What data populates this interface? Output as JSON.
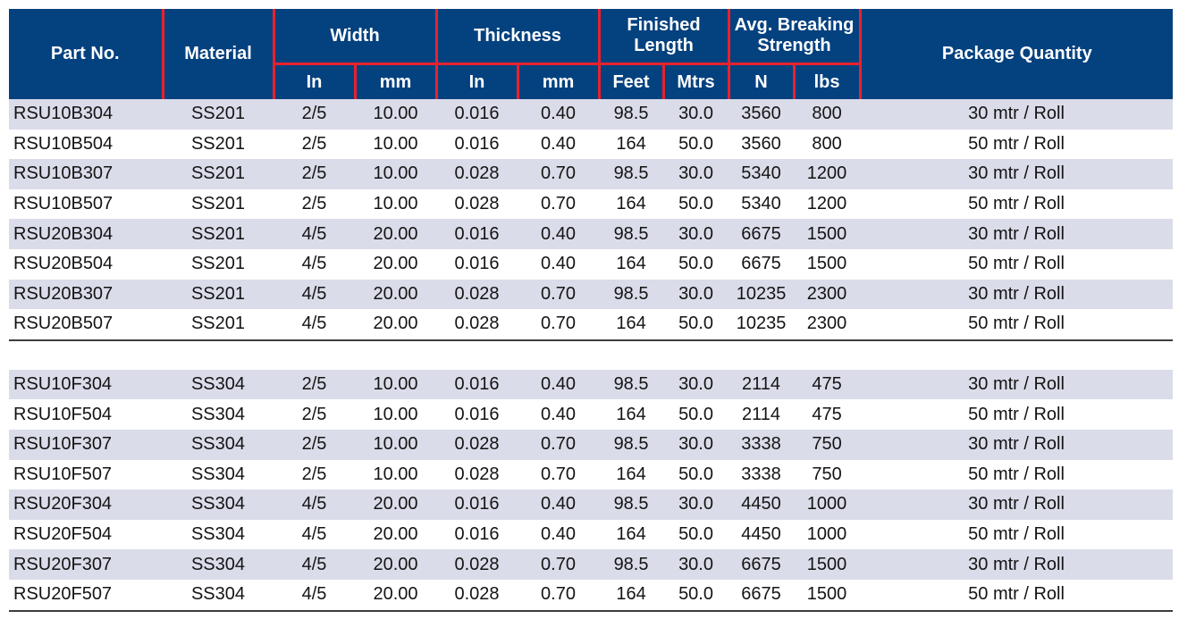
{
  "colors": {
    "header_bg": "#04417f",
    "header_text": "#ffffff",
    "grid_line_red": "#e8222d",
    "row_alt_bg": "#dadce9",
    "row_bg": "#ffffff",
    "section_rule": "#3d3d3d",
    "body_text": "#141414"
  },
  "table": {
    "columns": [
      {
        "label": "Part No."
      },
      {
        "label": "Material"
      },
      {
        "label": "Width",
        "children": [
          "In",
          "mm"
        ]
      },
      {
        "label": "Thickness",
        "children": [
          "In",
          "mm"
        ]
      },
      {
        "label": "Finished Length",
        "children": [
          "Feet",
          "Mtrs"
        ]
      },
      {
        "label": "Avg. Breaking Strength",
        "children": [
          "N",
          "lbs"
        ]
      },
      {
        "label": "Package Quantity"
      }
    ],
    "sections": [
      {
        "rows": [
          [
            "RSU10B304",
            "SS201",
            "2/5",
            "10.00",
            "0.016",
            "0.40",
            "98.5",
            "30.0",
            "3560",
            "800",
            "30 mtr / Roll"
          ],
          [
            "RSU10B504",
            "SS201",
            "2/5",
            "10.00",
            "0.016",
            "0.40",
            "164",
            "50.0",
            "3560",
            "800",
            "50 mtr / Roll"
          ],
          [
            "RSU10B307",
            "SS201",
            "2/5",
            "10.00",
            "0.028",
            "0.70",
            "98.5",
            "30.0",
            "5340",
            "1200",
            "30 mtr / Roll"
          ],
          [
            "RSU10B507",
            "SS201",
            "2/5",
            "10.00",
            "0.028",
            "0.70",
            "164",
            "50.0",
            "5340",
            "1200",
            "50 mtr / Roll"
          ],
          [
            "RSU20B304",
            "SS201",
            "4/5",
            "20.00",
            "0.016",
            "0.40",
            "98.5",
            "30.0",
            "6675",
            "1500",
            "30 mtr / Roll"
          ],
          [
            "RSU20B504",
            "SS201",
            "4/5",
            "20.00",
            "0.016",
            "0.40",
            "164",
            "50.0",
            "6675",
            "1500",
            "50 mtr / Roll"
          ],
          [
            "RSU20B307",
            "SS201",
            "4/5",
            "20.00",
            "0.028",
            "0.70",
            "98.5",
            "30.0",
            "10235",
            "2300",
            "30 mtr / Roll"
          ],
          [
            "RSU20B507",
            "SS201",
            "4/5",
            "20.00",
            "0.028",
            "0.70",
            "164",
            "50.0",
            "10235",
            "2300",
            "50 mtr / Roll"
          ]
        ]
      },
      {
        "rows": [
          [
            "RSU10F304",
            "SS304",
            "2/5",
            "10.00",
            "0.016",
            "0.40",
            "98.5",
            "30.0",
            "2114",
            "475",
            "30 mtr / Roll"
          ],
          [
            "RSU10F504",
            "SS304",
            "2/5",
            "10.00",
            "0.016",
            "0.40",
            "164",
            "50.0",
            "2114",
            "475",
            "50 mtr / Roll"
          ],
          [
            "RSU10F307",
            "SS304",
            "2/5",
            "10.00",
            "0.028",
            "0.70",
            "98.5",
            "30.0",
            "3338",
            "750",
            "30 mtr / Roll"
          ],
          [
            "RSU10F507",
            "SS304",
            "2/5",
            "10.00",
            "0.028",
            "0.70",
            "164",
            "50.0",
            "3338",
            "750",
            "50 mtr / Roll"
          ],
          [
            "RSU20F304",
            "SS304",
            "4/5",
            "20.00",
            "0.016",
            "0.40",
            "98.5",
            "30.0",
            "4450",
            "1000",
            "30 mtr / Roll"
          ],
          [
            "RSU20F504",
            "SS304",
            "4/5",
            "20.00",
            "0.016",
            "0.40",
            "164",
            "50.0",
            "4450",
            "1000",
            "50 mtr / Roll"
          ],
          [
            "RSU20F307",
            "SS304",
            "4/5",
            "20.00",
            "0.028",
            "0.70",
            "98.5",
            "30.0",
            "6675",
            "1500",
            "30 mtr / Roll"
          ],
          [
            "RSU20F507",
            "SS304",
            "4/5",
            "20.00",
            "0.028",
            "0.70",
            "164",
            "50.0",
            "6675",
            "1500",
            "50 mtr / Roll"
          ]
        ]
      }
    ]
  }
}
